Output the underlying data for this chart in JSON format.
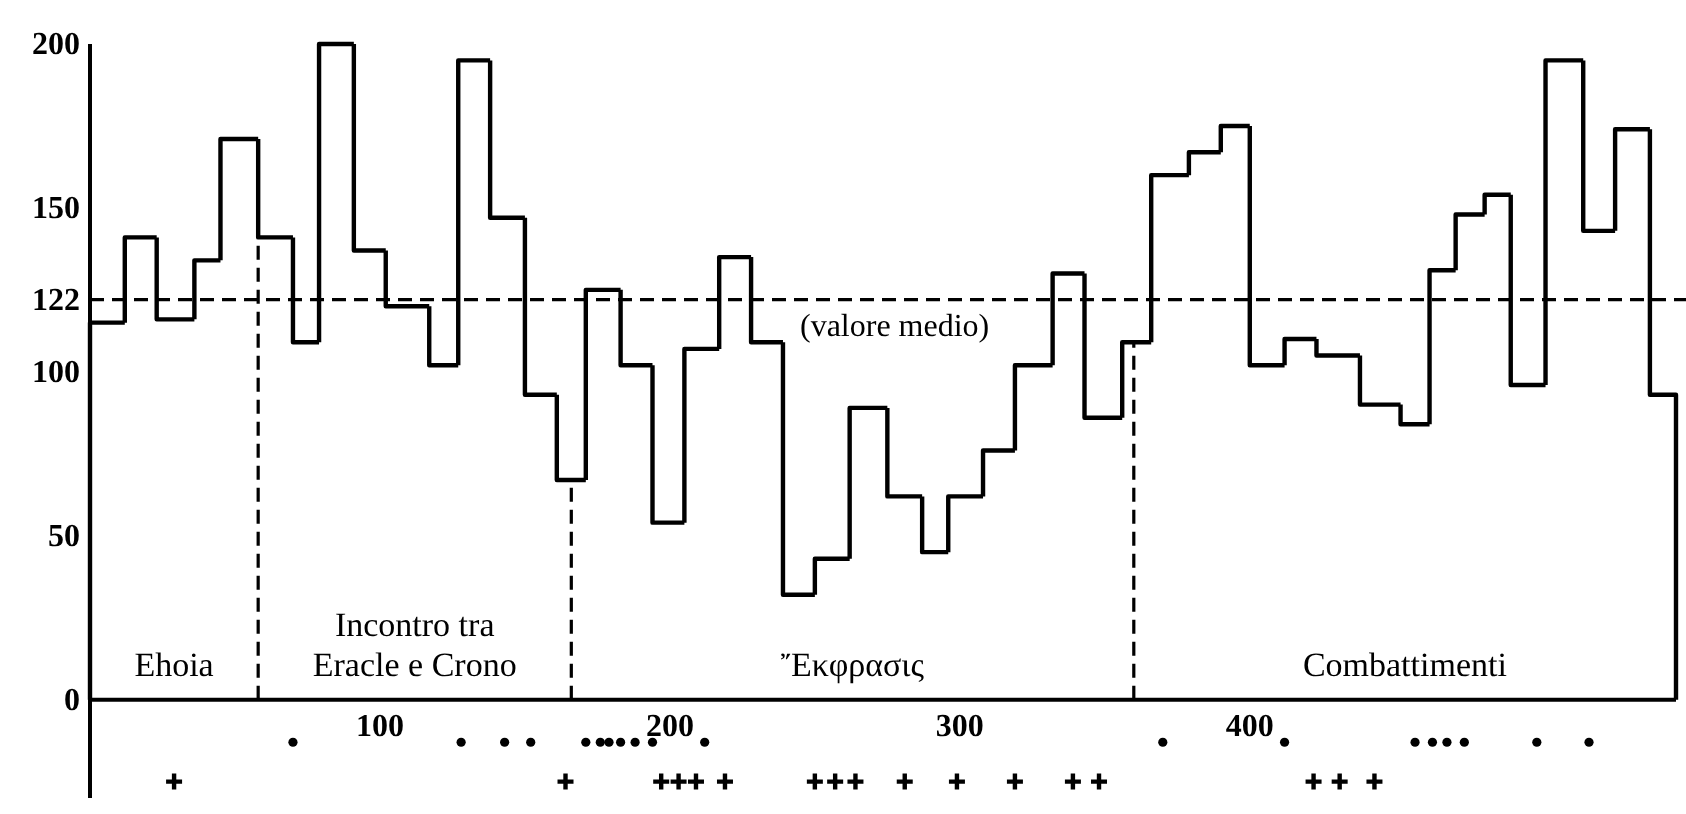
{
  "chart_data": {
    "type": "histogram",
    "bins": [
      0,
      12,
      23,
      36,
      45,
      58,
      70,
      79,
      91,
      102,
      117,
      127,
      138,
      150,
      161,
      171,
      183,
      194,
      205,
      217,
      228,
      239,
      250,
      262,
      275,
      287,
      296,
      308,
      319,
      332,
      343,
      356,
      366,
      379,
      390,
      400,
      412,
      423,
      438,
      452,
      462,
      471,
      481,
      490,
      502,
      515,
      526,
      538,
      547
    ],
    "values": [
      115,
      141,
      116,
      134,
      171,
      141,
      109,
      200,
      137,
      120,
      102,
      195,
      147,
      93,
      67,
      125,
      102,
      54,
      107,
      135,
      109,
      32,
      43,
      89,
      62,
      45,
      62,
      76,
      102,
      130,
      86,
      109,
      160,
      167,
      175,
      102,
      110,
      105,
      90,
      84,
      131,
      148,
      154,
      96,
      195,
      143,
      174,
      93
    ],
    "color": "#000000",
    "series": [
      {
        "type": "scatter",
        "marker": "circle",
        "color": "#000000",
        "x": [
          70,
          128,
          143,
          152,
          171,
          176,
          179,
          183,
          188,
          194,
          212,
          370,
          412,
          457,
          463,
          468,
          474,
          499,
          517
        ],
        "values": [
          -13,
          -13,
          -13,
          -13,
          -13,
          -13,
          -13,
          -13,
          -13,
          -13,
          -13,
          -13,
          -13,
          -13,
          -13,
          -13,
          -13,
          -13,
          -13
        ]
      },
      {
        "type": "scatter",
        "marker": "cross",
        "color": "#000000",
        "x": [
          29,
          164,
          197,
          203,
          209,
          219,
          250,
          257,
          264,
          281,
          299,
          319,
          339,
          348,
          422,
          431,
          443
        ],
        "values": [
          -25,
          -25,
          -25,
          -25,
          -25,
          -25,
          -25,
          -25,
          -25,
          -25,
          -25,
          -25,
          -25,
          -25,
          -25,
          -25,
          -25
        ]
      }
    ],
    "xlim": [
      0,
      547
    ],
    "xticks": [
      100,
      200,
      300,
      400
    ],
    "ylim": [
      -30,
      200
    ],
    "yticks": [
      0,
      50,
      100,
      122,
      150,
      200
    ],
    "ref_lines": [
      {
        "axis": "y",
        "value": 122,
        "label": "(valore medio)",
        "line_style": "dashed"
      },
      {
        "axis": "x",
        "value": 58,
        "line_style": "dashed"
      },
      {
        "axis": "x",
        "value": 166,
        "line_style": "dashed"
      },
      {
        "axis": "x",
        "value": 360,
        "line_style": "dashed"
      }
    ],
    "annotations": [
      "Ehoia",
      "Incontro tra\nEracle e Crono",
      "Ἔκφρασις",
      "Combattimenti"
    ],
    "grid": false
  }
}
